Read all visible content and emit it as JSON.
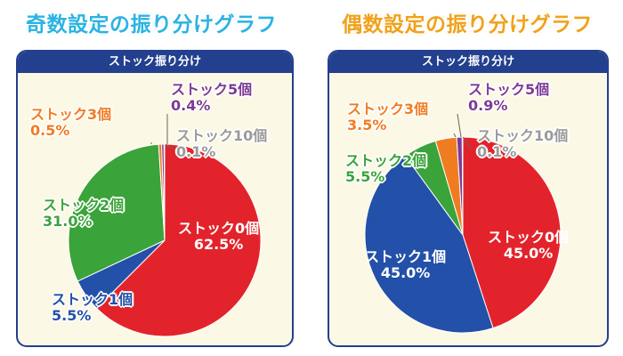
{
  "titles": {
    "odd": "奇数設定の振り分けグラフ",
    "even": "偶数設定の振り分けグラフ"
  },
  "colors": {
    "stock0": "#e3232b",
    "stock1": "#2350a8",
    "stock2": "#3aa33a",
    "stock3": "#f07c22",
    "stock5": "#7d3a96",
    "stock10": "#9a9a9a",
    "header": "#23408e",
    "panel_bg": "#fcf8e6"
  },
  "chart_data": [
    {
      "type": "pie",
      "title": "奇数設定の振り分けグラフ",
      "subtitle": "ストック振り分け",
      "series": [
        {
          "name": "ストック0個",
          "value": 62.5,
          "label": "62.5%"
        },
        {
          "name": "ストック1個",
          "value": 5.5,
          "label": "5.5%"
        },
        {
          "name": "ストック2個",
          "value": 31.0,
          "label": "31.0%"
        },
        {
          "name": "ストック3個",
          "value": 0.5,
          "label": "0.5%"
        },
        {
          "name": "ストック5個",
          "value": 0.4,
          "label": "0.4%"
        },
        {
          "name": "ストック10個",
          "value": 0.1,
          "label": "0.1%"
        }
      ]
    },
    {
      "type": "pie",
      "title": "偶数設定の振り分けグラフ",
      "subtitle": "ストック振り分け",
      "series": [
        {
          "name": "ストック0個",
          "value": 45.0,
          "label": "45.0%"
        },
        {
          "name": "ストック1個",
          "value": 45.0,
          "label": "45.0%"
        },
        {
          "name": "ストック2個",
          "value": 5.5,
          "label": "5.5%"
        },
        {
          "name": "ストック3個",
          "value": 3.5,
          "label": "3.5%"
        },
        {
          "name": "ストック5個",
          "value": 0.9,
          "label": "0.9%"
        },
        {
          "name": "ストック10個",
          "value": 0.1,
          "label": "0.1%"
        }
      ]
    }
  ]
}
